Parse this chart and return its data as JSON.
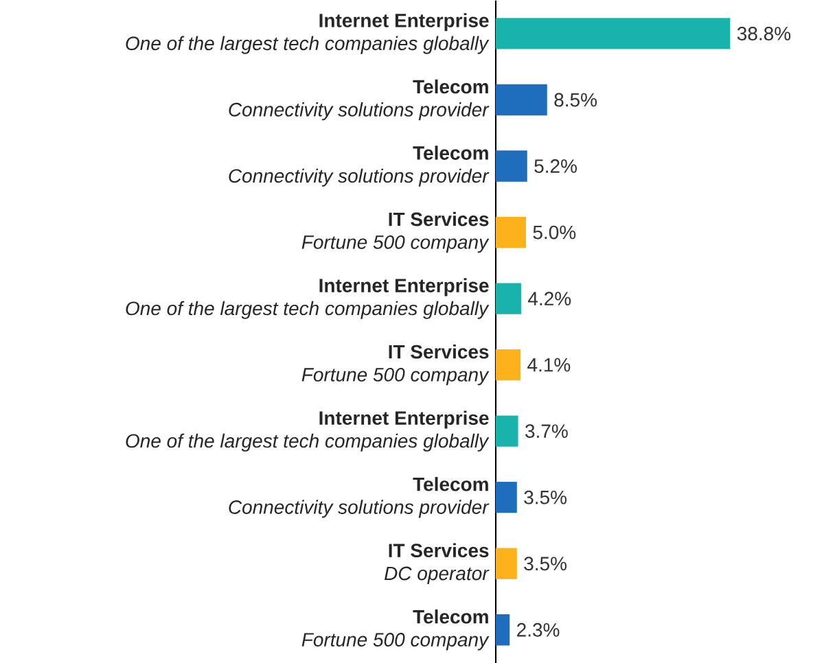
{
  "chart_data": {
    "type": "bar",
    "orientation": "horizontal",
    "categories": [
      "**Internet Enterprise**\n*One of the largest tech companies globally*",
      "**Telecom**\n*Connectivity solutions provider*",
      "**Telecom**\n*Connectivity solutions provider*",
      "**IT Services**\n*Fortune 500 company*",
      "**Internet Enterprise**\n*One of the largest tech companies globally*",
      "**IT Services**\n*Fortune 500 company*",
      "**Internet Enterprise**\n*One of the largest tech companies globally*",
      "**Telecom**\n*Connectivity solutions provider*",
      "**IT Services**\n*DC operator*",
      "**Telecom**\n*Fortune 500 company*"
    ],
    "values": [
      38.8,
      8.5,
      5.2,
      5.0,
      4.2,
      4.1,
      3.7,
      3.5,
      3.5,
      2.3
    ],
    "colors": [
      "#1ab3ac",
      "#1f6dbd",
      "#1f6dbd",
      "#fbb21b",
      "#1ab3ac",
      "#fbb21b",
      "#1ab3ac",
      "#1f6dbd",
      "#fbb21b",
      "#1f6dbd"
    ],
    "value_labels": [
      "38.8%",
      "8.5%",
      "5.2%",
      "5.0%",
      "4.2%",
      "4.1%",
      "3.7%",
      "3.5%",
      "3.5%",
      "2.3%"
    ]
  }
}
